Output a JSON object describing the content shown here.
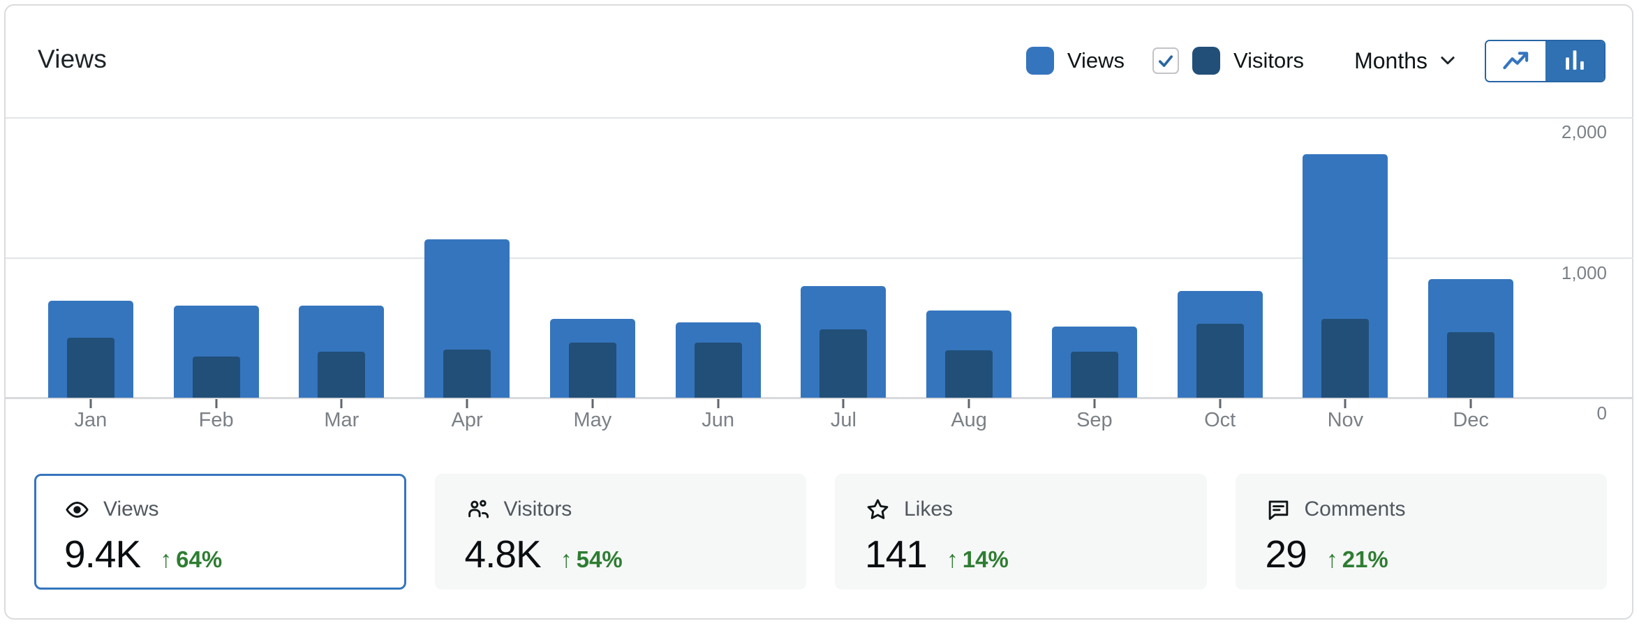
{
  "header": {
    "title": "Views"
  },
  "legend": {
    "views_label": "Views",
    "visitors_label": "Visitors",
    "visitors_checked": true
  },
  "controls": {
    "period_label": "Months",
    "chart_type_selected": "bar"
  },
  "chart_data": {
    "type": "bar",
    "categories": [
      "Jan",
      "Feb",
      "Mar",
      "Apr",
      "May",
      "Jun",
      "Jul",
      "Aug",
      "Sep",
      "Oct",
      "Nov",
      "Dec"
    ],
    "series": [
      {
        "name": "Views",
        "color": "#3575BE",
        "values": [
          695,
          660,
          660,
          1130,
          565,
          540,
          800,
          625,
          510,
          765,
          1740,
          850
        ]
      },
      {
        "name": "Visitors",
        "color": "#224F78",
        "values": [
          430,
          295,
          330,
          345,
          395,
          395,
          490,
          340,
          330,
          530,
          565,
          470
        ]
      }
    ],
    "title": "Views",
    "xlabel": "",
    "ylabel": "",
    "ylim": [
      0,
      2000
    ],
    "y_ticks": [
      "2,000",
      "1,000",
      "0"
    ],
    "grid": "horizontal",
    "legend_position": "top-right"
  },
  "summary_cards": [
    {
      "id": "views",
      "label": "Views",
      "value": "9.4K",
      "trend_arrow": "↑",
      "trend": "64%",
      "selected": true,
      "icon": "eye-icon"
    },
    {
      "id": "visitors",
      "label": "Visitors",
      "value": "4.8K",
      "trend_arrow": "↑",
      "trend": "54%",
      "selected": false,
      "icon": "users-icon"
    },
    {
      "id": "likes",
      "label": "Likes",
      "value": "141",
      "trend_arrow": "↑",
      "trend": "14%",
      "selected": false,
      "icon": "star-icon"
    },
    {
      "id": "comments",
      "label": "Comments",
      "value": "29",
      "trend_arrow": "↑",
      "trend": "21%",
      "selected": false,
      "icon": "comment-icon"
    }
  ],
  "colors": {
    "views_blue": "#3575BE",
    "visitors_navy": "#224F78",
    "trend_green": "#2E7D32",
    "card_border": "#d9dbde",
    "toggle_border": "#2765A5",
    "toggle_fill": "#2F71B3",
    "check_blue": "#2B66A0"
  }
}
